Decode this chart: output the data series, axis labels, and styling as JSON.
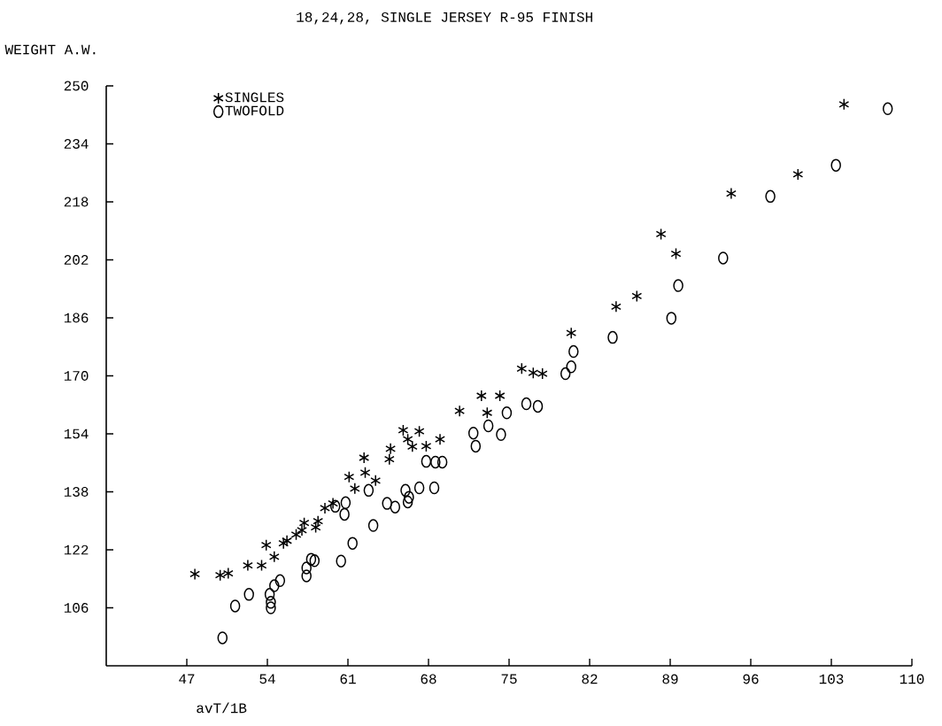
{
  "chart_data": {
    "type": "scatter",
    "title": "18,24,28, SINGLE JERSEY R-95 FINISH",
    "xlabel": "avT/1B",
    "ylabel": "WEIGHT A.W.",
    "xlim": [
      40,
      110
    ],
    "xticks": [
      47,
      54,
      61,
      68,
      75,
      82,
      89,
      96,
      103,
      110
    ],
    "ylim": [
      90,
      250
    ],
    "yticks": [
      106,
      122,
      138,
      154,
      170,
      186,
      202,
      218,
      234,
      250
    ],
    "grid": false,
    "legend": "top left",
    "series": [
      {
        "name": "SINGLES",
        "color": "#000000",
        "marker": "cross",
        "x": [
          47.7,
          49.9,
          50.6,
          52.3,
          53.5,
          53.9,
          54.6,
          55.4,
          55.7,
          56.5,
          57.0,
          57.2,
          58.2,
          58.4,
          59.0,
          59.7,
          61.1,
          61.6,
          62.4,
          62.5,
          63.4,
          64.6,
          64.7,
          65.8,
          66.2,
          66.6,
          67.2,
          67.8,
          69.0,
          70.7,
          72.6,
          73.1,
          74.2,
          76.1,
          77.1,
          77.9,
          80.4,
          84.3,
          86.1,
          88.2,
          89.5,
          94.3,
          100.1,
          104.1
        ],
        "values": [
          115.3,
          115.0,
          115.5,
          117.7,
          117.7,
          123.3,
          120.1,
          123.8,
          124.5,
          126.2,
          127.4,
          129.4,
          128.2,
          129.9,
          133.5,
          134.8,
          142.1,
          138.9,
          147.4,
          143.3,
          141.1,
          147.0,
          149.9,
          155.0,
          152.5,
          150.5,
          154.7,
          150.6,
          152.5,
          160.3,
          164.5,
          159.8,
          164.5,
          172.0,
          170.8,
          170.6,
          181.8,
          189.1,
          192.0,
          209.1,
          203.7,
          220.3,
          225.6,
          244.9
        ]
      },
      {
        "name": "TWOFOLD",
        "color": "#000000",
        "marker": "circle",
        "x": [
          50.1,
          51.2,
          52.4,
          54.2,
          54.3,
          54.3,
          54.6,
          55.1,
          57.4,
          57.4,
          57.8,
          58.1,
          59.9,
          60.4,
          60.7,
          60.8,
          61.4,
          62.8,
          63.2,
          64.4,
          65.1,
          66.0,
          66.2,
          66.3,
          67.2,
          67.8,
          68.5,
          68.6,
          69.2,
          71.9,
          72.1,
          73.2,
          74.3,
          74.8,
          76.5,
          77.5,
          79.9,
          80.4,
          80.6,
          84.0,
          89.1,
          89.7,
          93.6,
          97.7,
          103.4,
          107.9
        ],
        "values": [
          97.7,
          106.5,
          109.7,
          109.7,
          107.5,
          106.0,
          112.1,
          113.5,
          114.8,
          117.0,
          119.4,
          119.0,
          134.0,
          118.9,
          131.8,
          135.0,
          123.8,
          138.4,
          128.7,
          134.8,
          133.8,
          138.4,
          135.2,
          136.5,
          139.1,
          146.4,
          139.1,
          146.2,
          146.2,
          154.2,
          150.6,
          156.2,
          153.8,
          159.8,
          162.3,
          161.6,
          170.6,
          172.5,
          176.7,
          180.6,
          185.9,
          194.9,
          202.5,
          219.5,
          228.1,
          243.7
        ]
      }
    ]
  }
}
